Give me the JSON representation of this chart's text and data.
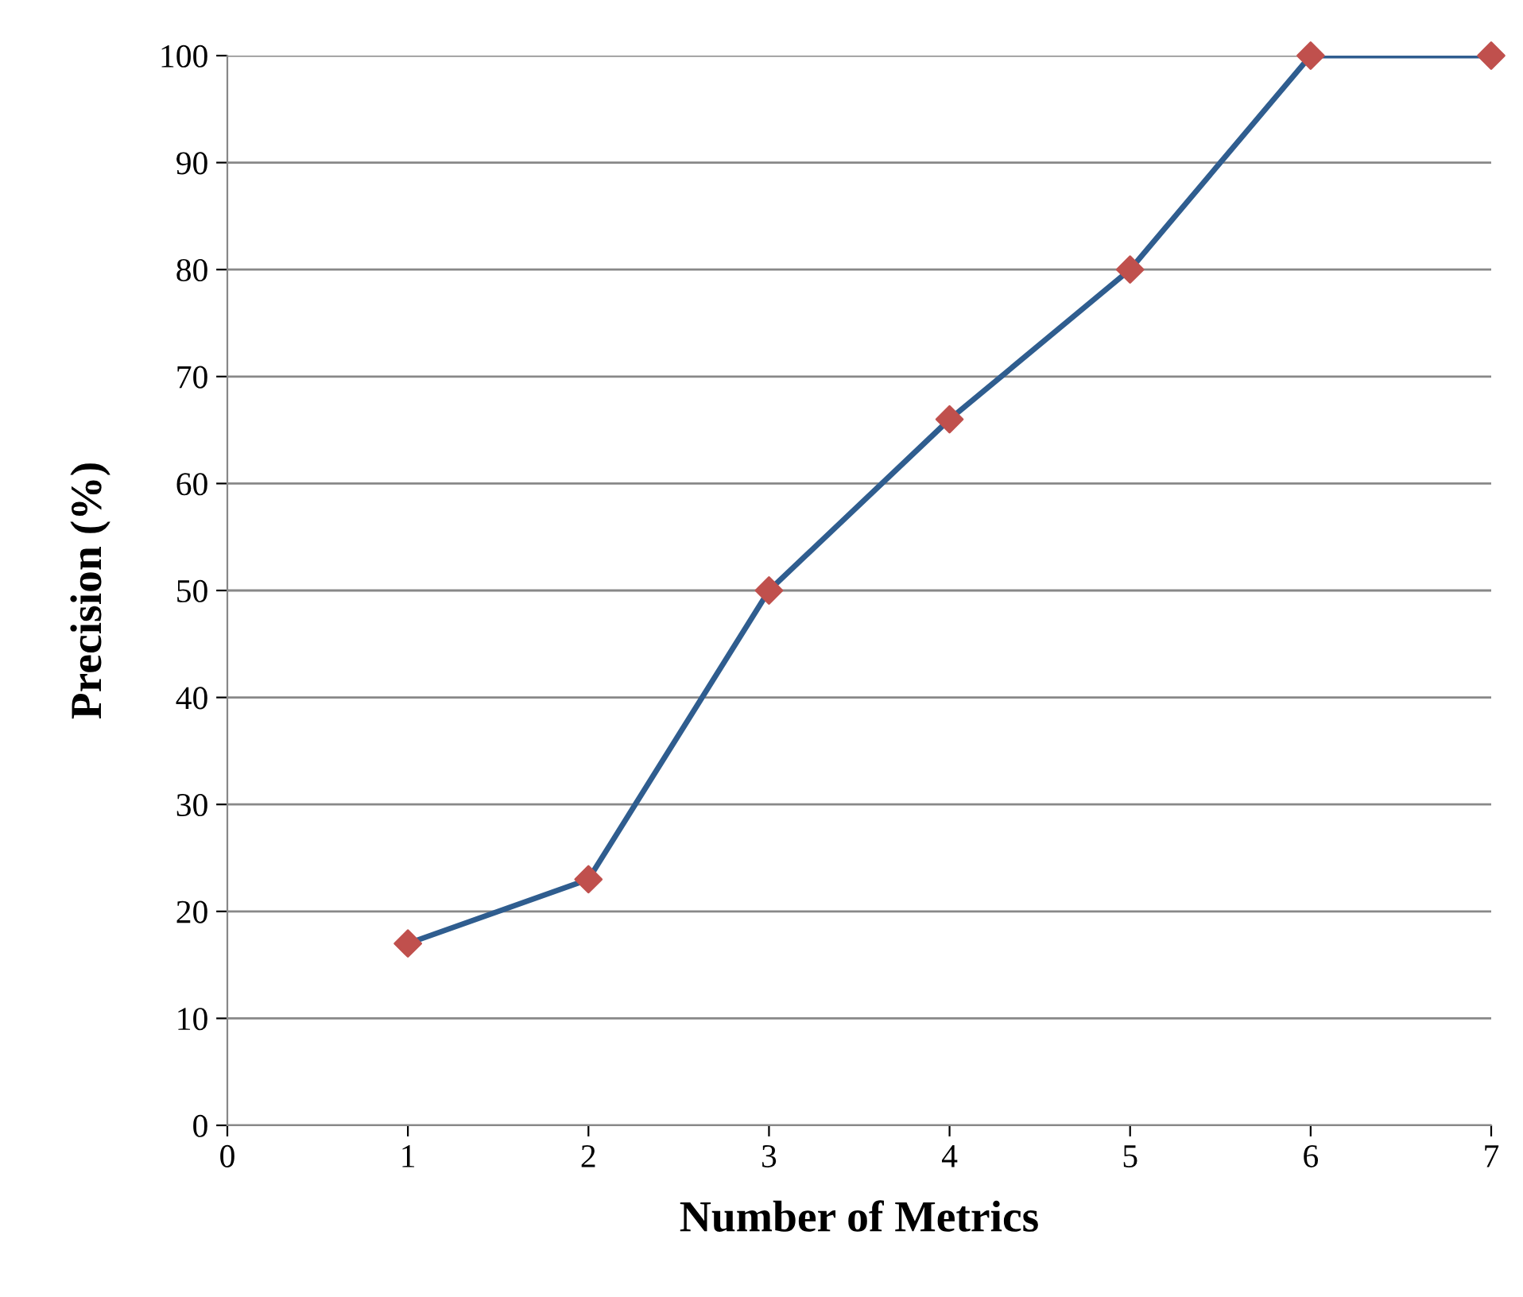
{
  "chart_data": {
    "type": "line",
    "xlabel": "Number of Metrics",
    "ylabel": "Precision (%)",
    "x": [
      1,
      2,
      3,
      4,
      5,
      6,
      7
    ],
    "series": [
      {
        "color": "#2f5d8f",
        "colors": [
          "#c0504d",
          "#c0504d",
          "#c0504d",
          "#c0504d",
          "#c0504d",
          "#c0504d",
          "#c0504d"
        ],
        "values": [
          17,
          23,
          50,
          66,
          80,
          100,
          100
        ]
      }
    ],
    "xlim": [
      0,
      7
    ],
    "xticks": [
      0,
      1,
      2,
      3,
      4,
      5,
      6,
      7
    ],
    "ylim": [
      0,
      100
    ],
    "yticks": [
      0,
      10,
      20,
      30,
      40,
      50,
      60,
      70,
      80,
      90,
      100
    ],
    "grid": "y",
    "marker": "diamond",
    "line_style": "solid"
  }
}
